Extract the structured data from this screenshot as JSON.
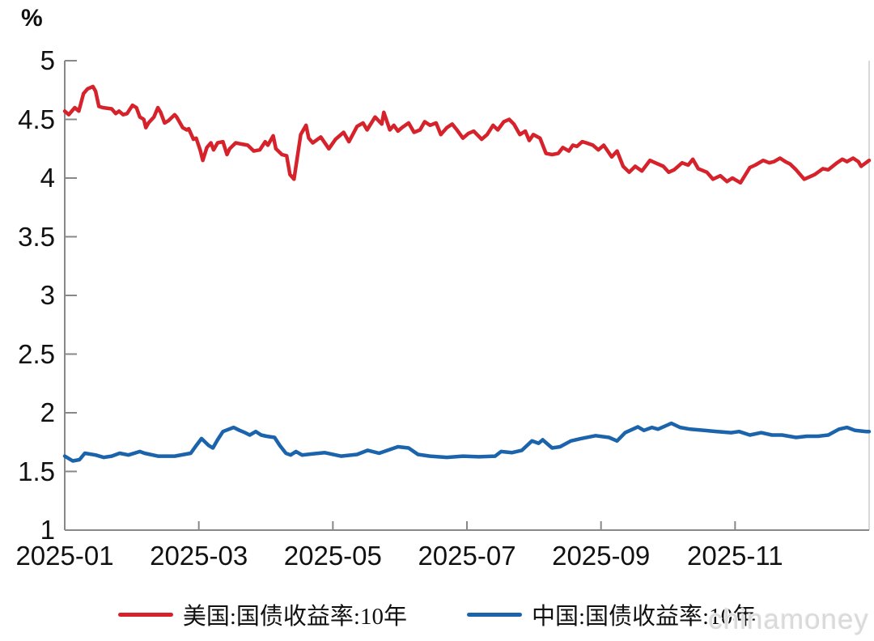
{
  "chart": {
    "watermark": "chinamoney",
    "colors": {
      "us_line": "#d6232b",
      "cn_line": "#1b63ab",
      "axis": "#888888",
      "right_spine": "#cccccc",
      "text": "#111111",
      "watermark": "#dadada"
    }
  },
  "chart_data": {
    "type": "line",
    "title": "",
    "xlabel": "",
    "ylabel": "%",
    "grid": false,
    "legend_position": "bottom",
    "ylim": [
      1,
      5
    ],
    "y_ticks": [
      5,
      4.5,
      4,
      3.5,
      3,
      2.5,
      2,
      1.5,
      1
    ],
    "x_unit": "months since 2025-01-01",
    "xlim": [
      0,
      12
    ],
    "x_ticks": [
      {
        "pos": 0,
        "label": "2025-01"
      },
      {
        "pos": 2,
        "label": "2025-03"
      },
      {
        "pos": 4,
        "label": "2025-05"
      },
      {
        "pos": 6,
        "label": "2025-07"
      },
      {
        "pos": 8,
        "label": "2025-09"
      },
      {
        "pos": 10,
        "label": "2025-11"
      }
    ],
    "series": [
      {
        "name": "美国:国债收益率:10年",
        "color": "#d6232b",
        "points": [
          [
            0,
            4.57
          ],
          [
            0.06,
            4.54
          ],
          [
            0.15,
            4.6
          ],
          [
            0.21,
            4.57
          ],
          [
            0.28,
            4.72
          ],
          [
            0.34,
            4.76
          ],
          [
            0.42,
            4.78
          ],
          [
            0.46,
            4.74
          ],
          [
            0.51,
            4.61
          ],
          [
            0.57,
            4.6
          ],
          [
            0.7,
            4.59
          ],
          [
            0.76,
            4.55
          ],
          [
            0.81,
            4.57
          ],
          [
            0.87,
            4.54
          ],
          [
            0.93,
            4.55
          ],
          [
            1.01,
            4.62
          ],
          [
            1.07,
            4.6
          ],
          [
            1.12,
            4.52
          ],
          [
            1.18,
            4.5
          ],
          [
            1.21,
            4.43
          ],
          [
            1.25,
            4.47
          ],
          [
            1.33,
            4.52
          ],
          [
            1.39,
            4.6
          ],
          [
            1.43,
            4.56
          ],
          [
            1.49,
            4.47
          ],
          [
            1.55,
            4.49
          ],
          [
            1.64,
            4.54
          ],
          [
            1.67,
            4.52
          ],
          [
            1.76,
            4.43
          ],
          [
            1.82,
            4.41
          ],
          [
            1.85,
            4.42
          ],
          [
            1.92,
            4.33
          ],
          [
            1.96,
            4.34
          ],
          [
            2.02,
            4.24
          ],
          [
            2.06,
            4.15
          ],
          [
            2.12,
            4.26
          ],
          [
            2.18,
            4.3
          ],
          [
            2.22,
            4.24
          ],
          [
            2.28,
            4.3
          ],
          [
            2.36,
            4.31
          ],
          [
            2.42,
            4.2
          ],
          [
            2.46,
            4.25
          ],
          [
            2.55,
            4.3
          ],
          [
            2.63,
            4.29
          ],
          [
            2.73,
            4.28
          ],
          [
            2.82,
            4.23
          ],
          [
            2.91,
            4.24
          ],
          [
            2.99,
            4.31
          ],
          [
            3.03,
            4.28
          ],
          [
            3.11,
            4.36
          ],
          [
            3.15,
            4.25
          ],
          [
            3.24,
            4.2
          ],
          [
            3.31,
            4.19
          ],
          [
            3.36,
            4.03
          ],
          [
            3.42,
            3.99
          ],
          [
            3.52,
            4.37
          ],
          [
            3.6,
            4.45
          ],
          [
            3.64,
            4.34
          ],
          [
            3.7,
            4.3
          ],
          [
            3.82,
            4.35
          ],
          [
            3.94,
            4.25
          ],
          [
            4.04,
            4.33
          ],
          [
            4.16,
            4.39
          ],
          [
            4.24,
            4.31
          ],
          [
            4.36,
            4.44
          ],
          [
            4.45,
            4.47
          ],
          [
            4.51,
            4.41
          ],
          [
            4.63,
            4.52
          ],
          [
            4.73,
            4.46
          ],
          [
            4.76,
            4.56
          ],
          [
            4.85,
            4.41
          ],
          [
            4.91,
            4.45
          ],
          [
            4.97,
            4.4
          ],
          [
            5.03,
            4.43
          ],
          [
            5.13,
            4.47
          ],
          [
            5.21,
            4.39
          ],
          [
            5.3,
            4.41
          ],
          [
            5.37,
            4.48
          ],
          [
            5.45,
            4.45
          ],
          [
            5.54,
            4.47
          ],
          [
            5.61,
            4.37
          ],
          [
            5.7,
            4.43
          ],
          [
            5.78,
            4.46
          ],
          [
            5.85,
            4.41
          ],
          [
            5.94,
            4.34
          ],
          [
            6.02,
            4.38
          ],
          [
            6.1,
            4.4
          ],
          [
            6.22,
            4.33
          ],
          [
            6.3,
            4.37
          ],
          [
            6.39,
            4.45
          ],
          [
            6.46,
            4.41
          ],
          [
            6.55,
            4.48
          ],
          [
            6.63,
            4.5
          ],
          [
            6.7,
            4.46
          ],
          [
            6.79,
            4.37
          ],
          [
            6.87,
            4.4
          ],
          [
            6.93,
            4.32
          ],
          [
            6.99,
            4.37
          ],
          [
            7.09,
            4.34
          ],
          [
            7.18,
            4.21
          ],
          [
            7.27,
            4.2
          ],
          [
            7.36,
            4.21
          ],
          [
            7.43,
            4.26
          ],
          [
            7.52,
            4.23
          ],
          [
            7.58,
            4.28
          ],
          [
            7.64,
            4.27
          ],
          [
            7.72,
            4.31
          ],
          [
            7.78,
            4.3
          ],
          [
            7.88,
            4.28
          ],
          [
            7.96,
            4.24
          ],
          [
            8.04,
            4.28
          ],
          [
            8.16,
            4.18
          ],
          [
            8.24,
            4.23
          ],
          [
            8.33,
            4.1
          ],
          [
            8.42,
            4.05
          ],
          [
            8.51,
            4.1
          ],
          [
            8.61,
            4.06
          ],
          [
            8.73,
            4.15
          ],
          [
            8.81,
            4.13
          ],
          [
            8.93,
            4.1
          ],
          [
            9.01,
            4.05
          ],
          [
            9.09,
            4.07
          ],
          [
            9.21,
            4.13
          ],
          [
            9.3,
            4.11
          ],
          [
            9.37,
            4.16
          ],
          [
            9.45,
            4.08
          ],
          [
            9.58,
            4.05
          ],
          [
            9.67,
            3.99
          ],
          [
            9.78,
            4.02
          ],
          [
            9.88,
            3.97
          ],
          [
            9.96,
            4.0
          ],
          [
            10.08,
            3.96
          ],
          [
            10.22,
            4.09
          ],
          [
            10.3,
            4.11
          ],
          [
            10.42,
            4.15
          ],
          [
            10.51,
            4.13
          ],
          [
            10.58,
            4.14
          ],
          [
            10.67,
            4.17
          ],
          [
            10.75,
            4.14
          ],
          [
            10.82,
            4.12
          ],
          [
            10.91,
            4.07
          ],
          [
            11.03,
            3.99
          ],
          [
            11.11,
            4.01
          ],
          [
            11.19,
            4.03
          ],
          [
            11.31,
            4.08
          ],
          [
            11.39,
            4.07
          ],
          [
            11.52,
            4.13
          ],
          [
            11.6,
            4.16
          ],
          [
            11.67,
            4.14
          ],
          [
            11.76,
            4.17
          ],
          [
            11.84,
            4.14
          ],
          [
            11.88,
            4.1
          ],
          [
            12,
            4.15
          ]
        ]
      },
      {
        "name": "中国:国债收益率:10年",
        "color": "#1b63ab",
        "points": [
          [
            0,
            1.63
          ],
          [
            0.12,
            1.59
          ],
          [
            0.22,
            1.6
          ],
          [
            0.3,
            1.655
          ],
          [
            0.46,
            1.64
          ],
          [
            0.58,
            1.62
          ],
          [
            0.7,
            1.63
          ],
          [
            0.82,
            1.655
          ],
          [
            0.95,
            1.64
          ],
          [
            1.12,
            1.67
          ],
          [
            1.19,
            1.655
          ],
          [
            1.39,
            1.63
          ],
          [
            1.64,
            1.63
          ],
          [
            1.88,
            1.655
          ],
          [
            1.96,
            1.72
          ],
          [
            2.04,
            1.78
          ],
          [
            2.15,
            1.72
          ],
          [
            2.21,
            1.7
          ],
          [
            2.28,
            1.77
          ],
          [
            2.36,
            1.84
          ],
          [
            2.45,
            1.86
          ],
          [
            2.52,
            1.875
          ],
          [
            2.61,
            1.85
          ],
          [
            2.69,
            1.83
          ],
          [
            2.76,
            1.81
          ],
          [
            2.85,
            1.84
          ],
          [
            2.93,
            1.81
          ],
          [
            3.01,
            1.8
          ],
          [
            3.13,
            1.79
          ],
          [
            3.21,
            1.72
          ],
          [
            3.3,
            1.655
          ],
          [
            3.37,
            1.64
          ],
          [
            3.45,
            1.67
          ],
          [
            3.54,
            1.64
          ],
          [
            3.7,
            1.65
          ],
          [
            3.88,
            1.66
          ],
          [
            4.12,
            1.63
          ],
          [
            4.36,
            1.645
          ],
          [
            4.52,
            1.68
          ],
          [
            4.69,
            1.655
          ],
          [
            4.97,
            1.71
          ],
          [
            5.13,
            1.7
          ],
          [
            5.27,
            1.645
          ],
          [
            5.45,
            1.63
          ],
          [
            5.7,
            1.62
          ],
          [
            5.94,
            1.63
          ],
          [
            6.18,
            1.625
          ],
          [
            6.42,
            1.63
          ],
          [
            6.51,
            1.67
          ],
          [
            6.67,
            1.66
          ],
          [
            6.82,
            1.68
          ],
          [
            6.97,
            1.76
          ],
          [
            7.07,
            1.74
          ],
          [
            7.13,
            1.77
          ],
          [
            7.27,
            1.7
          ],
          [
            7.39,
            1.71
          ],
          [
            7.55,
            1.76
          ],
          [
            7.7,
            1.78
          ],
          [
            7.92,
            1.805
          ],
          [
            8.12,
            1.79
          ],
          [
            8.24,
            1.76
          ],
          [
            8.36,
            1.83
          ],
          [
            8.55,
            1.88
          ],
          [
            8.64,
            1.85
          ],
          [
            8.76,
            1.875
          ],
          [
            8.85,
            1.86
          ],
          [
            9.05,
            1.91
          ],
          [
            9.18,
            1.875
          ],
          [
            9.33,
            1.86
          ],
          [
            9.54,
            1.85
          ],
          [
            9.73,
            1.84
          ],
          [
            9.94,
            1.83
          ],
          [
            10.06,
            1.84
          ],
          [
            10.22,
            1.81
          ],
          [
            10.39,
            1.83
          ],
          [
            10.55,
            1.81
          ],
          [
            10.7,
            1.81
          ],
          [
            10.91,
            1.79
          ],
          [
            11.07,
            1.8
          ],
          [
            11.24,
            1.8
          ],
          [
            11.39,
            1.81
          ],
          [
            11.55,
            1.86
          ],
          [
            11.67,
            1.875
          ],
          [
            11.79,
            1.85
          ],
          [
            11.96,
            1.84
          ],
          [
            12,
            1.84
          ]
        ]
      }
    ]
  }
}
